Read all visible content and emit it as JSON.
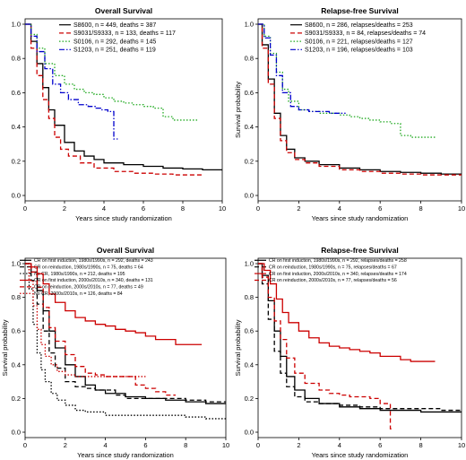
{
  "chart_data": [
    {
      "type": "line",
      "title": "Overall Survival",
      "xlabel": "Years since study randomization",
      "ylabel": "",
      "xlim": [
        0,
        10
      ],
      "ylim": [
        0,
        1
      ],
      "xticks": [
        "0",
        "2",
        "4",
        "6",
        "8",
        "10"
      ],
      "yticks": [
        "0.0",
        "0.2",
        "0.4",
        "0.6",
        "0.8",
        "1.0"
      ],
      "legend_position": "top-right",
      "series": [
        {
          "name": "S8600, n = 449, deaths = 387",
          "color": "#000000",
          "dash": "solid",
          "x": [
            0,
            0.3,
            0.6,
            0.9,
            1.2,
            1.5,
            2,
            2.5,
            3,
            3.5,
            4,
            5,
            6,
            7,
            8,
            9,
            10
          ],
          "y": [
            1.0,
            0.9,
            0.77,
            0.63,
            0.5,
            0.41,
            0.31,
            0.26,
            0.23,
            0.21,
            0.19,
            0.18,
            0.17,
            0.16,
            0.155,
            0.15,
            0.145
          ]
        },
        {
          "name": "S9031/S9333, n = 133, deaths = 117",
          "color": "#cc0000",
          "dash": "dashed",
          "x": [
            0,
            0.3,
            0.6,
            0.9,
            1.2,
            1.5,
            1.8,
            2.2,
            2.8,
            3.5,
            4.5,
            5.5,
            6.5,
            7.5,
            9
          ],
          "y": [
            1.0,
            0.86,
            0.7,
            0.56,
            0.45,
            0.34,
            0.27,
            0.23,
            0.19,
            0.16,
            0.14,
            0.13,
            0.125,
            0.12,
            0.12
          ]
        },
        {
          "name": "S0106, n = 292, deaths = 145",
          "color": "#22aa22",
          "dash": "dotted",
          "x": [
            0,
            0.3,
            0.6,
            1,
            1.5,
            2,
            2.5,
            3,
            3.5,
            4,
            4.5,
            5,
            5.5,
            6,
            6.5,
            7,
            7.5,
            8,
            8.8
          ],
          "y": [
            1.0,
            0.94,
            0.86,
            0.77,
            0.7,
            0.65,
            0.62,
            0.6,
            0.59,
            0.57,
            0.55,
            0.54,
            0.53,
            0.52,
            0.51,
            0.46,
            0.44,
            0.44,
            0.44
          ]
        },
        {
          "name": "S1203, n = 251, deaths = 119",
          "color": "#0000cc",
          "dash": "dashdot",
          "x": [
            0,
            0.3,
            0.6,
            1,
            1.4,
            1.8,
            2.2,
            2.7,
            3.2,
            3.6,
            3.9,
            4.2,
            4.5,
            4.5,
            4.7
          ],
          "y": [
            1.0,
            0.93,
            0.84,
            0.74,
            0.65,
            0.6,
            0.56,
            0.53,
            0.52,
            0.51,
            0.5,
            0.49,
            0.48,
            0.33,
            0.33
          ]
        }
      ]
    },
    {
      "type": "line",
      "title": "Relapse-free Survival",
      "xlabel": "Years since study randomization",
      "ylabel": "Survival probability",
      "xlim": [
        0,
        10
      ],
      "ylim": [
        0,
        1
      ],
      "xticks": [
        "0",
        "2",
        "4",
        "6",
        "8",
        "10"
      ],
      "yticks": [
        "0.0",
        "0.2",
        "0.4",
        "0.6",
        "0.8",
        "1.0"
      ],
      "legend_position": "top-right",
      "series": [
        {
          "name": "S8600, n = 286, relapses/deaths = 253",
          "color": "#000000",
          "dash": "solid",
          "x": [
            0,
            0.2,
            0.5,
            0.8,
            1.1,
            1.4,
            1.8,
            2.3,
            3,
            4,
            5,
            6,
            7,
            8,
            9,
            10
          ],
          "y": [
            1.0,
            0.88,
            0.68,
            0.48,
            0.35,
            0.27,
            0.22,
            0.2,
            0.18,
            0.16,
            0.15,
            0.14,
            0.135,
            0.13,
            0.125,
            0.12
          ]
        },
        {
          "name": "S9031/S9333, n = 84, relapses/deaths = 74",
          "color": "#cc0000",
          "dash": "dashed",
          "x": [
            0,
            0.2,
            0.5,
            0.8,
            1.1,
            1.4,
            1.8,
            2.3,
            3,
            4,
            5,
            6,
            7,
            8,
            9,
            10
          ],
          "y": [
            1.0,
            0.86,
            0.65,
            0.45,
            0.32,
            0.25,
            0.21,
            0.19,
            0.17,
            0.15,
            0.14,
            0.13,
            0.125,
            0.12,
            0.12,
            0.12
          ]
        },
        {
          "name": "S0106, n = 221, relapses/deaths = 127",
          "color": "#22aa22",
          "dash": "dotted",
          "x": [
            0,
            0.3,
            0.6,
            0.9,
            1.2,
            1.5,
            2,
            2.5,
            3,
            3.5,
            4,
            4.5,
            5,
            5.5,
            6,
            6.5,
            7,
            7.5,
            8,
            8.7
          ],
          "y": [
            1.0,
            0.93,
            0.83,
            0.72,
            0.62,
            0.55,
            0.5,
            0.49,
            0.48,
            0.48,
            0.47,
            0.46,
            0.45,
            0.44,
            0.43,
            0.42,
            0.35,
            0.34,
            0.34,
            0.34
          ]
        },
        {
          "name": "S1203, n = 196, relapses/deaths = 103",
          "color": "#0000cc",
          "dash": "dashdot",
          "x": [
            0,
            0.3,
            0.6,
            0.9,
            1.2,
            1.6,
            2,
            2.5,
            3,
            3.5,
            4,
            4.3
          ],
          "y": [
            1.0,
            0.92,
            0.82,
            0.7,
            0.6,
            0.52,
            0.5,
            0.49,
            0.49,
            0.48,
            0.48,
            0.48
          ]
        }
      ]
    },
    {
      "type": "line",
      "title": "Overall Survival",
      "xlabel": "Years since study randomization",
      "ylabel": "Survival probability",
      "xlim": [
        0,
        10
      ],
      "ylim": [
        0,
        1
      ],
      "xticks": [
        "0",
        "2",
        "4",
        "6",
        "8",
        "10"
      ],
      "yticks": [
        "0.0",
        "0.2",
        "0.4",
        "0.6",
        "0.8",
        "1.0"
      ],
      "legend_position": "top-right",
      "series": [
        {
          "name": "CR on first induction, 1980s/1990s, n = 292, deaths = 243",
          "color": "#000000",
          "dash": "solid",
          "x": [
            0,
            0.3,
            0.6,
            0.9,
            1.2,
            1.5,
            2,
            2.5,
            3,
            3.5,
            4,
            5,
            6,
            7,
            8,
            9,
            10
          ],
          "y": [
            1.0,
            0.95,
            0.84,
            0.72,
            0.6,
            0.5,
            0.4,
            0.33,
            0.28,
            0.25,
            0.23,
            0.21,
            0.2,
            0.19,
            0.18,
            0.17,
            0.17
          ]
        },
        {
          "name": "CR on reinduction, 1980s/1990s, n = 75, deaths = 64",
          "color": "#000000",
          "dash": "dashed",
          "x": [
            0,
            0.3,
            0.6,
            0.9,
            1.2,
            1.5,
            2,
            2.5,
            3,
            3.5,
            4,
            4.5,
            5,
            6,
            7,
            8,
            9,
            10
          ],
          "y": [
            1.0,
            0.9,
            0.76,
            0.6,
            0.47,
            0.38,
            0.3,
            0.27,
            0.26,
            0.25,
            0.25,
            0.22,
            0.2,
            0.2,
            0.2,
            0.19,
            0.18,
            0.18
          ]
        },
        {
          "name": "No CR, 1980s/1990s, n = 212, deaths = 195",
          "color": "#000000",
          "dash": "dotted",
          "x": [
            0,
            0.2,
            0.4,
            0.6,
            0.8,
            1,
            1.3,
            1.6,
            2,
            2.5,
            3,
            4,
            5,
            6,
            7,
            8,
            9,
            10
          ],
          "y": [
            1.0,
            0.85,
            0.64,
            0.47,
            0.37,
            0.3,
            0.23,
            0.19,
            0.16,
            0.13,
            0.12,
            0.1,
            0.1,
            0.1,
            0.1,
            0.09,
            0.08,
            0.08
          ]
        },
        {
          "name": "CR on first induction, 2000s/2010s, n = 340, deaths = 131",
          "color": "#cc0000",
          "dash": "solid",
          "x": [
            0,
            0.3,
            0.6,
            0.9,
            1.2,
            1.5,
            2,
            2.5,
            3,
            3.5,
            4,
            4.5,
            5,
            5.5,
            6,
            6.5,
            7,
            7.5,
            8,
            8.8
          ],
          "y": [
            1.0,
            0.98,
            0.94,
            0.88,
            0.82,
            0.77,
            0.72,
            0.68,
            0.66,
            0.64,
            0.63,
            0.61,
            0.6,
            0.59,
            0.57,
            0.55,
            0.55,
            0.52,
            0.52,
            0.52
          ]
        },
        {
          "name": "CR on reinduction, 2000s/2010s, n = 77, deaths = 49",
          "color": "#cc0000",
          "dash": "dashed",
          "x": [
            0,
            0.3,
            0.6,
            0.9,
            1.2,
            1.5,
            2,
            2.5,
            3,
            3.5,
            4,
            4.5,
            5,
            5.5,
            6,
            6.5,
            7,
            7.5
          ],
          "y": [
            1.0,
            0.95,
            0.86,
            0.74,
            0.62,
            0.54,
            0.46,
            0.39,
            0.35,
            0.34,
            0.33,
            0.33,
            0.33,
            0.28,
            0.26,
            0.24,
            0.22,
            0.22
          ]
        },
        {
          "name": "No CR, 2000s/2010s, n = 126, deaths = 84",
          "color": "#cc0000",
          "dash": "dotted",
          "x": [
            0,
            0.2,
            0.4,
            0.6,
            0.8,
            1,
            1.3,
            1.6,
            2,
            2.5,
            3,
            3.5,
            4,
            4.5,
            5,
            5.5,
            6
          ],
          "y": [
            1.0,
            0.9,
            0.75,
            0.61,
            0.52,
            0.45,
            0.4,
            0.36,
            0.34,
            0.33,
            0.33,
            0.33,
            0.33,
            0.33,
            0.33,
            0.33,
            0.33
          ]
        }
      ]
    },
    {
      "type": "line",
      "title": "Relapse-free Survival",
      "xlabel": "Years since study randomization",
      "ylabel": "Survival probability",
      "xlim": [
        0,
        10
      ],
      "ylim": [
        0,
        1
      ],
      "xticks": [
        "0",
        "2",
        "4",
        "6",
        "8",
        "10"
      ],
      "yticks": [
        "0.0",
        "0.2",
        "0.4",
        "0.6",
        "0.8",
        "1.0"
      ],
      "legend_position": "top-right",
      "series": [
        {
          "name": "CR on first induction, 1980s/1990s, n = 292, relapses/deaths = 258",
          "color": "#000000",
          "dash": "solid",
          "x": [
            0,
            0.2,
            0.5,
            0.8,
            1.1,
            1.4,
            1.8,
            2.3,
            3,
            4,
            5,
            6,
            7,
            8,
            9,
            10
          ],
          "y": [
            1.0,
            0.93,
            0.78,
            0.6,
            0.45,
            0.33,
            0.25,
            0.2,
            0.17,
            0.15,
            0.14,
            0.13,
            0.13,
            0.12,
            0.12,
            0.12
          ]
        },
        {
          "name": "CR on reinduction, 1980s/1990s, n = 75, relapses/deaths = 67",
          "color": "#000000",
          "dash": "dashed",
          "x": [
            0,
            0.2,
            0.5,
            0.8,
            1.1,
            1.4,
            1.8,
            2.3,
            3,
            4,
            5,
            6,
            7,
            8,
            9,
            10
          ],
          "y": [
            1.0,
            0.88,
            0.67,
            0.48,
            0.35,
            0.27,
            0.21,
            0.18,
            0.17,
            0.16,
            0.15,
            0.14,
            0.14,
            0.14,
            0.13,
            0.13
          ]
        },
        {
          "name": "CR on first induction, 2000s/2010s, n = 340, relapses/deaths = 174",
          "color": "#cc0000",
          "dash": "solid",
          "x": [
            0,
            0.3,
            0.6,
            0.9,
            1.2,
            1.5,
            2,
            2.5,
            3,
            3.5,
            4,
            4.5,
            5,
            5.5,
            6,
            6.5,
            7,
            7.5,
            8,
            8.7
          ],
          "y": [
            1.0,
            0.96,
            0.88,
            0.79,
            0.71,
            0.65,
            0.6,
            0.56,
            0.53,
            0.51,
            0.5,
            0.49,
            0.48,
            0.47,
            0.45,
            0.45,
            0.43,
            0.42,
            0.42,
            0.42
          ]
        },
        {
          "name": "CR on reinduction, 2000s/2010s, n = 77, relapses/deaths = 56",
          "color": "#cc0000",
          "dash": "dashed",
          "x": [
            0,
            0.2,
            0.5,
            0.8,
            1.1,
            1.4,
            1.8,
            2.3,
            3,
            3.5,
            4,
            4.5,
            5,
            5.5,
            6,
            6.5,
            6.5,
            6.6
          ],
          "y": [
            1.0,
            0.92,
            0.8,
            0.66,
            0.55,
            0.44,
            0.35,
            0.29,
            0.25,
            0.23,
            0.22,
            0.21,
            0.21,
            0.2,
            0.17,
            0.17,
            0.02,
            0.02
          ]
        }
      ]
    }
  ]
}
